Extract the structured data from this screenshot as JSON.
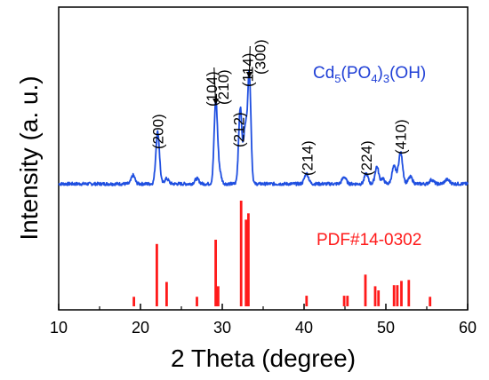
{
  "chart_data": {
    "type": "line",
    "xlabel": "2 Theta (degree)",
    "ylabel": "Intensity (a. u.)",
    "xlim": [
      10,
      60
    ],
    "x_ticks": [
      "10",
      "20",
      "30",
      "40",
      "50",
      "60"
    ],
    "grid": false,
    "legend_placement": "inline-right",
    "colors": {
      "measured": "#1f4fe0",
      "reference": "#ff1a1a"
    },
    "series": [
      {
        "name": "Cd5(PO4)3(OH)",
        "name_parts": {
          "base": "Cd",
          "s1": "5",
          "mid": "(PO",
          "s2": "4",
          "mid2": ")",
          "s3": "3",
          "end": "(OH)"
        },
        "baseline": 1,
        "peaks": [
          {
            "x": 19.1,
            "h": 2.5,
            "w": 0.22
          },
          {
            "x": 22.1,
            "h": 15,
            "w": 0.22
          },
          {
            "x": 23.2,
            "h": 1.5,
            "w": 0.25
          },
          {
            "x": 26.9,
            "h": 1.5,
            "w": 0.25
          },
          {
            "x": 29.2,
            "h": 23,
            "w": 0.2
          },
          {
            "x": 29.6,
            "h": 4,
            "w": 0.25
          },
          {
            "x": 32.2,
            "h": 22,
            "w": 0.2
          },
          {
            "x": 32.8,
            "h": 16,
            "w": 0.2
          },
          {
            "x": 33.3,
            "h": 32,
            "w": 0.2
          },
          {
            "x": 40.3,
            "h": 3,
            "w": 0.25
          },
          {
            "x": 44.9,
            "h": 2,
            "w": 0.25
          },
          {
            "x": 47.6,
            "h": 3,
            "w": 0.22
          },
          {
            "x": 48.9,
            "h": 5,
            "w": 0.22
          },
          {
            "x": 49.6,
            "h": 1.5,
            "w": 0.22
          },
          {
            "x": 51.0,
            "h": 5,
            "w": 0.25
          },
          {
            "x": 51.8,
            "h": 9,
            "w": 0.25
          },
          {
            "x": 53.0,
            "h": 2,
            "w": 0.25
          },
          {
            "x": 55.6,
            "h": 1.2,
            "w": 0.25
          },
          {
            "x": 57.5,
            "h": 1.2,
            "w": 0.3
          }
        ]
      },
      {
        "name": "PDF#14-0302",
        "type": "bar",
        "sticks": [
          {
            "x": 19.2,
            "y": 9
          },
          {
            "x": 22.0,
            "y": 59
          },
          {
            "x": 23.2,
            "y": 23
          },
          {
            "x": 26.9,
            "y": 9
          },
          {
            "x": 29.2,
            "y": 63
          },
          {
            "x": 29.5,
            "y": 19
          },
          {
            "x": 32.3,
            "y": 100
          },
          {
            "x": 32.9,
            "y": 82
          },
          {
            "x": 33.2,
            "y": 88
          },
          {
            "x": 40.3,
            "y": 10
          },
          {
            "x": 44.9,
            "y": 10
          },
          {
            "x": 45.3,
            "y": 10
          },
          {
            "x": 47.5,
            "y": 30
          },
          {
            "x": 48.7,
            "y": 19
          },
          {
            "x": 49.1,
            "y": 15
          },
          {
            "x": 51.0,
            "y": 20
          },
          {
            "x": 51.4,
            "y": 20
          },
          {
            "x": 51.9,
            "y": 24
          },
          {
            "x": 52.8,
            "y": 25
          },
          {
            "x": 55.4,
            "y": 9
          }
        ]
      }
    ],
    "annotations": [
      {
        "text": "(200)",
        "x": 22.1
      },
      {
        "text": "(104)",
        "x": 28.7
      },
      {
        "text": "(210)",
        "x": 30.1
      },
      {
        "text": "(212)",
        "x": 32.0
      },
      {
        "text": "(114)",
        "x": 33.1
      },
      {
        "text": "(300)",
        "x": 34.6
      },
      {
        "text": "(214)",
        "x": 40.4
      },
      {
        "text": "(224)",
        "x": 47.6
      },
      {
        "text": "(410)",
        "x": 51.8
      }
    ]
  }
}
